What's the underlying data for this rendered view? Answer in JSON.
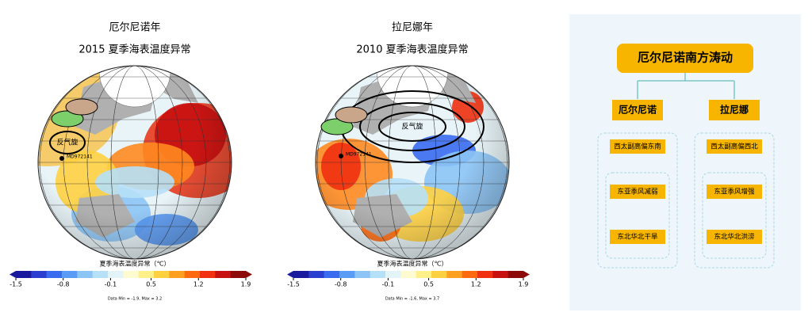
{
  "maps": [
    {
      "title": "厄尔尼诺年",
      "subtitle": "2015 夏季海表温度异常",
      "annotation": "反气旋",
      "station": "MD972141",
      "colorbar": {
        "label": "夏季海表温度异常（℃）",
        "ticks": [
          -1.5,
          -0.8,
          -0.1,
          0.5,
          1.2,
          1.9
        ]
      },
      "data_range": "Data Min = -1.9, Max = 3.2"
    },
    {
      "title": "拉尼娜年",
      "subtitle": "2010 夏季海表温度异常",
      "annotation": "反气旋",
      "station": "MD972141",
      "colorbar": {
        "label": "夏季海表温度异常（℃）",
        "ticks": [
          -1.5,
          -0.8,
          -0.1,
          0.5,
          1.2,
          1.9
        ]
      },
      "data_range": "Data Min = -1.6, Max = 3.7"
    }
  ],
  "diagram": {
    "title": "厄尔尼诺南方涛动",
    "columns": [
      {
        "label": "厄尔尼诺",
        "items": [
          "西太副高偏东南",
          "东亚季风减弱",
          "东北华北干旱"
        ]
      },
      {
        "label": "拉尼娜",
        "items": [
          "西太副高偏西北",
          "东亚季风增强",
          "东北华北洪涝"
        ]
      }
    ]
  }
}
